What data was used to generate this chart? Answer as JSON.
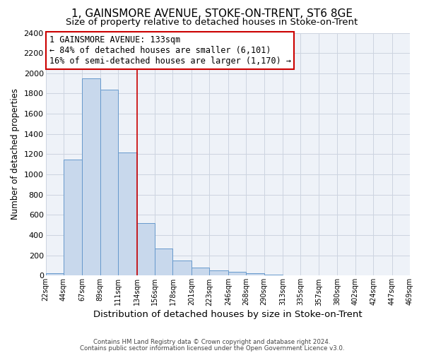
{
  "title": "1, GAINSMORE AVENUE, STOKE-ON-TRENT, ST6 8GE",
  "subtitle": "Size of property relative to detached houses in Stoke-on-Trent",
  "xlabel": "Distribution of detached houses by size in Stoke-on-Trent",
  "ylabel": "Number of detached properties",
  "bin_edges": [
    22,
    44,
    67,
    89,
    111,
    134,
    156,
    178,
    201,
    223,
    246,
    268,
    290,
    313,
    335,
    357,
    380,
    402,
    424,
    447,
    469
  ],
  "bin_counts": [
    25,
    1150,
    1950,
    1840,
    1220,
    520,
    265,
    150,
    80,
    50,
    40,
    25,
    10,
    5,
    3,
    2,
    1,
    1,
    1,
    1
  ],
  "bar_color": "#c8d8ec",
  "bar_edge_color": "#6699cc",
  "vline_x": 134,
  "vline_color": "#cc0000",
  "annotation_text": "1 GAINSMORE AVENUE: 133sqm\n← 84% of detached houses are smaller (6,101)\n16% of semi-detached houses are larger (1,170) →",
  "annotation_box_edge": "#cc0000",
  "annotation_fontsize": 8.5,
  "grid_color": "#ccd4e0",
  "bg_color": "#eef2f8",
  "footer_line1": "Contains HM Land Registry data © Crown copyright and database right 2024.",
  "footer_line2": "Contains public sector information licensed under the Open Government Licence v3.0.",
  "title_fontsize": 11,
  "subtitle_fontsize": 9.5,
  "xlabel_fontsize": 9.5,
  "ylabel_fontsize": 8.5,
  "tick_labels": [
    "22sqm",
    "44sqm",
    "67sqm",
    "89sqm",
    "111sqm",
    "134sqm",
    "156sqm",
    "178sqm",
    "201sqm",
    "223sqm",
    "246sqm",
    "268sqm",
    "290sqm",
    "313sqm",
    "335sqm",
    "357sqm",
    "380sqm",
    "402sqm",
    "424sqm",
    "447sqm",
    "469sqm"
  ],
  "ylim": [
    0,
    2400
  ],
  "yticks": [
    0,
    200,
    400,
    600,
    800,
    1000,
    1200,
    1400,
    1600,
    1800,
    2000,
    2200,
    2400
  ]
}
